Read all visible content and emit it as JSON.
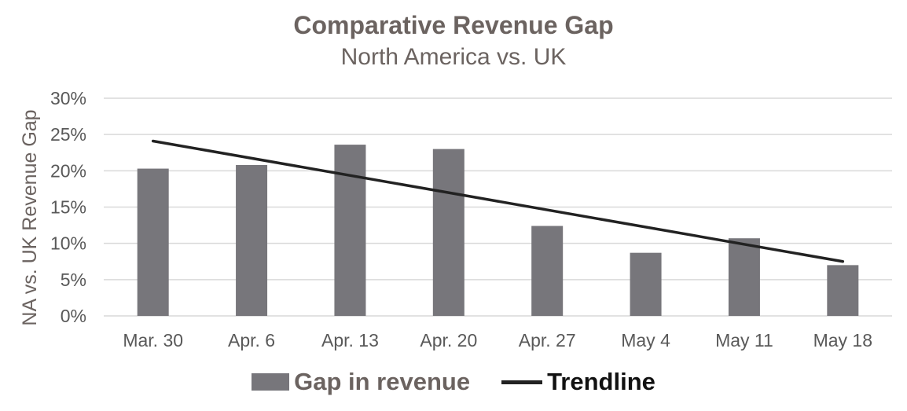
{
  "chart_data": {
    "type": "bar",
    "title": "Comparative Revenue Gap",
    "subtitle": "North America vs. UK",
    "ylabel": "NA vs. UK Revenue Gap",
    "xlabel": "",
    "categories": [
      "Mar. 30",
      "Apr. 6",
      "Apr. 13",
      "Apr. 20",
      "Apr. 27",
      "May 4",
      "May 11",
      "May 18"
    ],
    "series": [
      {
        "name": "Gap in revenue",
        "values": [
          20.3,
          20.8,
          23.6,
          23.0,
          12.4,
          8.7,
          10.7,
          7.0
        ],
        "color": "#77767b"
      }
    ],
    "trendline": {
      "name": "Trendline",
      "start": 24.1,
      "end": 7.5,
      "color": "#222222"
    },
    "ylim": [
      0,
      30
    ],
    "yticks": [
      0,
      5,
      10,
      15,
      20,
      25,
      30
    ],
    "ytick_labels": [
      "0%",
      "5%",
      "10%",
      "15%",
      "20%",
      "25%",
      "30%"
    ],
    "grid": true,
    "legend_position": "bottom"
  }
}
